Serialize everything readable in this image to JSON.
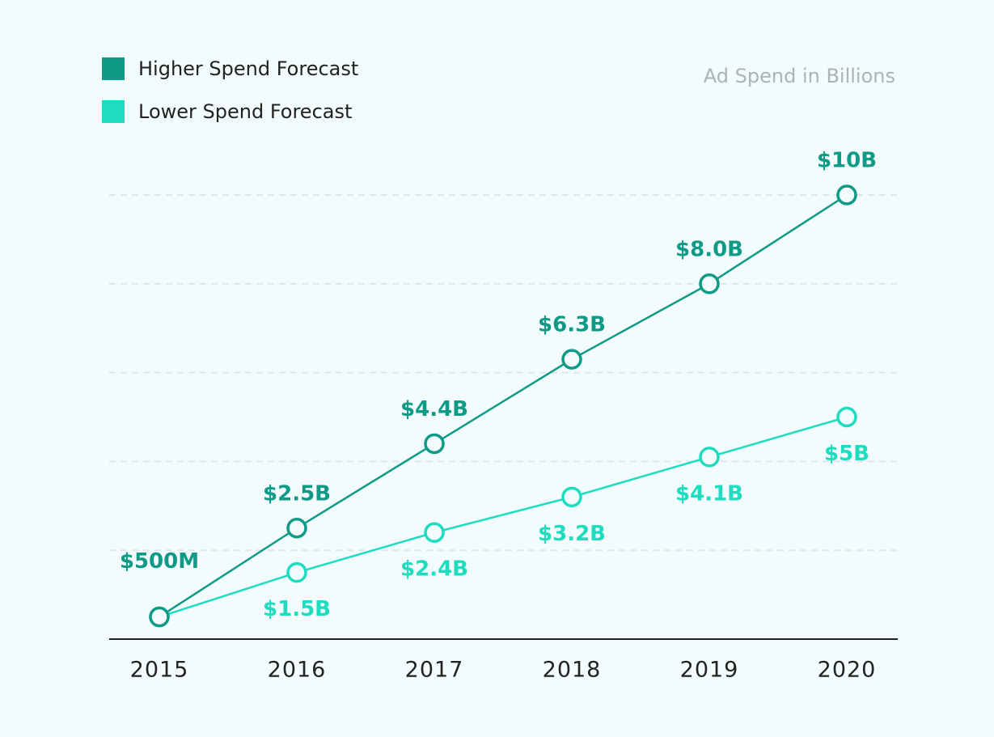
{
  "chart_data": {
    "type": "line",
    "y_axis_label": "Ad Spend in Billions",
    "categories": [
      "2015",
      "2016",
      "2017",
      "2018",
      "2019",
      "2020"
    ],
    "series": [
      {
        "name": "Higher Spend Forecast",
        "color": "#0f9a87",
        "values": [
          0.5,
          2.5,
          4.4,
          6.3,
          8.0,
          10
        ],
        "value_labels": [
          "$500M",
          "$2.5B",
          "$4.4B",
          "$6.3B",
          "$8.0B",
          "$10B"
        ]
      },
      {
        "name": "Lower Spend Forecast",
        "color": "#1ddcc0",
        "values": [
          0.5,
          1.5,
          2.4,
          3.2,
          4.1,
          5
        ],
        "value_labels": [
          null,
          "$1.5B",
          "$2.4B",
          "$3.2B",
          "$4.1B",
          "$5B"
        ]
      }
    ],
    "ylim": [
      0,
      10
    ],
    "yticks": [
      2,
      4,
      6,
      8,
      10
    ],
    "grid": true,
    "legend": "top-left"
  }
}
